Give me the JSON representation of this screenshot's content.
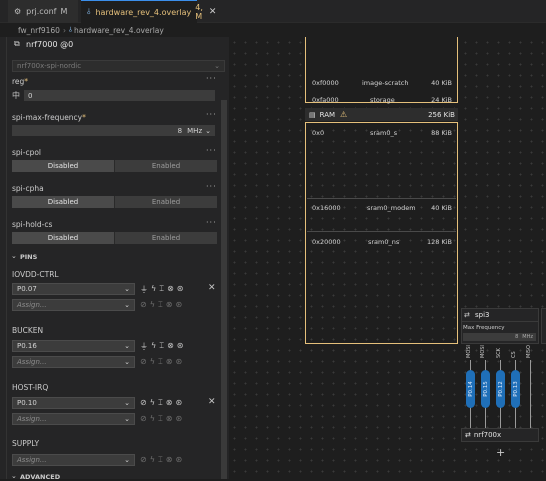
{
  "tabs": [
    {
      "label": "prj.conf",
      "marker": "M",
      "icon": "gear-icon"
    },
    {
      "label": "hardware_rev_4.overlay",
      "marker": "4, M",
      "icon": "devicetree-icon",
      "close": "✕"
    }
  ],
  "breadcrumb": [
    "fw_nrf9160",
    "hardware_rev_4.overlay"
  ],
  "node": {
    "name": "nrf7000 @0",
    "compatible": "nrf700x-spi-nordic",
    "reg": {
      "label": "reg",
      "required": "*",
      "value": "0"
    },
    "spi_max_frequency": {
      "label": "spi-max-frequency",
      "required": "*",
      "value": "8",
      "unit": "MHz"
    },
    "spi_cpol": {
      "label": "spi-cpol",
      "options": [
        "Disabled",
        "Enabled"
      ],
      "selected": "Disabled"
    },
    "spi_cpha": {
      "label": "spi-cpha",
      "options": [
        "Disabled",
        "Enabled"
      ],
      "selected": "Disabled"
    },
    "spi_hold_cs": {
      "label": "spi-hold-cs",
      "options": [
        "Disabled",
        "Enabled"
      ],
      "selected": "Disabled"
    }
  },
  "pins_section": "PINS",
  "advanced_section": "ADVANCED",
  "pins": [
    {
      "name": "IOVDD-CTRL",
      "value": "P0.07",
      "assign": "Assign..."
    },
    {
      "name": "BUCKEN",
      "value": "P0.16",
      "assign": "Assign..."
    },
    {
      "name": "HOST-IRQ",
      "value": "P0.10",
      "assign": "Assign..."
    },
    {
      "name": "SUPPLY",
      "value": "",
      "assign": "Assign..."
    }
  ],
  "memory": {
    "flash_rows": [
      {
        "addr": "0xf0000",
        "name": "image-scratch",
        "size": "40 KiB"
      },
      {
        "addr": "0xfa000",
        "name": "storage",
        "size": "24 KiB"
      }
    ],
    "ram": {
      "title": "RAM",
      "size": "256 KiB",
      "rows": [
        {
          "addr": "0x0",
          "name": "sram0_s",
          "size": "88 KiB"
        },
        {
          "addr": "0x16000",
          "name": "sram0_modem",
          "size": "40 KiB"
        },
        {
          "addr": "0x20000",
          "name": "sram0_ns",
          "size": "128 KiB"
        }
      ]
    }
  },
  "spi_node": {
    "title": "spi3",
    "field": "Max Frequency",
    "value": "8",
    "unit": "MHz"
  },
  "signals": [
    "MOSI",
    "MOSI",
    "SCK",
    "CS",
    "MISO"
  ],
  "pin_chips": [
    "P0.14",
    "P0.15",
    "P0.12",
    "P0.13"
  ],
  "device_node": {
    "title": "nrf700x"
  },
  "add_label": "+",
  "colors": {
    "accent": "#e5c07b",
    "pin": "#1f6fb8",
    "warning": "#e5c07b"
  }
}
